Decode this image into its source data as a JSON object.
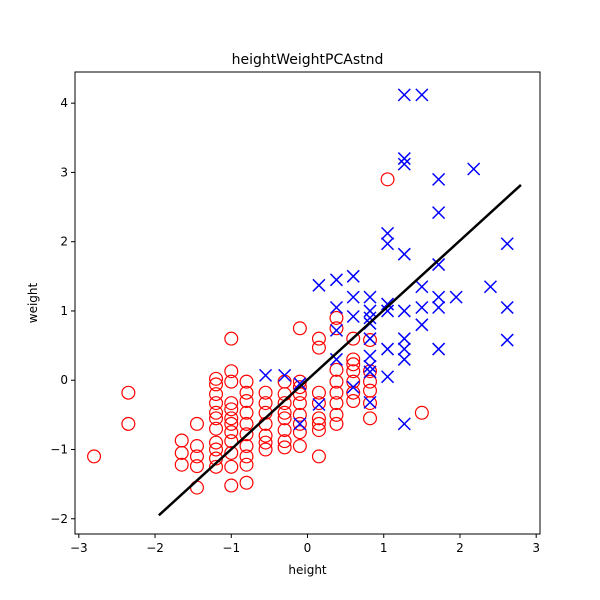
{
  "chart_data": {
    "type": "scatter",
    "title": "heightWeightPCAstnd",
    "xlabel": "height",
    "ylabel": "weight",
    "xlim": [
      -3.05,
      3.05
    ],
    "ylim": [
      -2.22,
      4.45
    ],
    "xticks": [
      -3,
      -2,
      -1,
      0,
      1,
      2,
      3
    ],
    "yticks": [
      -2,
      -1,
      0,
      1,
      2,
      3,
      4
    ],
    "xtick_labels": [
      "−3",
      "−2",
      "−1",
      "0",
      "1",
      "2",
      "3"
    ],
    "ytick_labels": [
      "−2",
      "−1",
      "0",
      "1",
      "2",
      "3",
      "4"
    ],
    "grid": false,
    "colors": {
      "series_o": "#ff0000",
      "series_x": "#0000ff",
      "line": "#000000"
    },
    "series": [
      {
        "marker": "circle",
        "color": "#ff0000",
        "points": [
          [
            -2.8,
            -1.1
          ],
          [
            -2.35,
            -0.18
          ],
          [
            -2.35,
            -0.63
          ],
          [
            -1.65,
            -0.87
          ],
          [
            -1.65,
            -1.05
          ],
          [
            -1.65,
            -1.22
          ],
          [
            -1.45,
            -0.63
          ],
          [
            -1.45,
            -0.95
          ],
          [
            -1.45,
            -1.1
          ],
          [
            -1.45,
            -1.24
          ],
          [
            -1.45,
            -1.55
          ],
          [
            -1.2,
            0.02
          ],
          [
            -1.2,
            -0.06
          ],
          [
            -1.2,
            -0.2
          ],
          [
            -1.2,
            -0.33
          ],
          [
            -1.2,
            -0.47
          ],
          [
            -1.2,
            -0.55
          ],
          [
            -1.2,
            -0.7
          ],
          [
            -1.2,
            -0.9
          ],
          [
            -1.2,
            -1.0
          ],
          [
            -1.2,
            -1.13
          ],
          [
            -1.2,
            -1.25
          ],
          [
            -1.0,
            0.6
          ],
          [
            -1.0,
            0.13
          ],
          [
            -1.0,
            -0.02
          ],
          [
            -1.0,
            -0.33
          ],
          [
            -1.0,
            -0.42
          ],
          [
            -1.0,
            -0.55
          ],
          [
            -1.0,
            -0.63
          ],
          [
            -1.0,
            -0.75
          ],
          [
            -1.0,
            -0.88
          ],
          [
            -1.0,
            -1.05
          ],
          [
            -1.0,
            -1.25
          ],
          [
            -1.0,
            -1.52
          ],
          [
            -0.8,
            -0.02
          ],
          [
            -0.8,
            -0.18
          ],
          [
            -0.8,
            -0.3
          ],
          [
            -0.8,
            -0.47
          ],
          [
            -0.8,
            -0.63
          ],
          [
            -0.8,
            -0.78
          ],
          [
            -0.8,
            -0.95
          ],
          [
            -0.8,
            -1.1
          ],
          [
            -0.8,
            -1.22
          ],
          [
            -0.8,
            -1.48
          ],
          [
            -0.55,
            -0.18
          ],
          [
            -0.55,
            -0.33
          ],
          [
            -0.55,
            -0.47
          ],
          [
            -0.55,
            -0.63
          ],
          [
            -0.55,
            -0.8
          ],
          [
            -0.55,
            -0.9
          ],
          [
            -0.55,
            -1.0
          ],
          [
            -0.3,
            -0.02
          ],
          [
            -0.3,
            -0.2
          ],
          [
            -0.3,
            -0.33
          ],
          [
            -0.3,
            -0.47
          ],
          [
            -0.3,
            -0.55
          ],
          [
            -0.3,
            -0.72
          ],
          [
            -0.3,
            -0.88
          ],
          [
            -0.3,
            -0.97
          ],
          [
            -0.1,
            0.75
          ],
          [
            -0.1,
            -0.02
          ],
          [
            -0.1,
            -0.1
          ],
          [
            -0.1,
            -0.2
          ],
          [
            -0.1,
            -0.33
          ],
          [
            -0.1,
            -0.5
          ],
          [
            -0.1,
            -0.63
          ],
          [
            -0.1,
            -0.75
          ],
          [
            -0.1,
            -0.95
          ],
          [
            0.15,
            0.6
          ],
          [
            0.15,
            0.47
          ],
          [
            0.15,
            -0.18
          ],
          [
            0.15,
            -0.33
          ],
          [
            0.15,
            -0.55
          ],
          [
            0.15,
            -0.63
          ],
          [
            0.15,
            -0.72
          ],
          [
            0.15,
            -1.1
          ],
          [
            0.38,
            0.9
          ],
          [
            0.38,
            0.75
          ],
          [
            0.38,
            0.15
          ],
          [
            0.38,
            -0.02
          ],
          [
            0.38,
            -0.18
          ],
          [
            0.38,
            -0.33
          ],
          [
            0.38,
            -0.5
          ],
          [
            0.38,
            -0.63
          ],
          [
            0.6,
            0.6
          ],
          [
            0.6,
            0.3
          ],
          [
            0.6,
            0.23
          ],
          [
            0.6,
            0.13
          ],
          [
            0.6,
            -0.02
          ],
          [
            0.6,
            -0.18
          ],
          [
            0.6,
            -0.3
          ],
          [
            0.82,
            0.58
          ],
          [
            0.82,
            0.13
          ],
          [
            0.82,
            -0.02
          ],
          [
            0.82,
            -0.15
          ],
          [
            0.82,
            -0.33
          ],
          [
            0.82,
            -0.55
          ],
          [
            1.05,
            2.9
          ],
          [
            1.5,
            -0.47
          ]
        ]
      },
      {
        "marker": "x",
        "color": "#0000ff",
        "points": [
          [
            -0.55,
            0.07
          ],
          [
            -0.3,
            0.07
          ],
          [
            -0.1,
            -0.05
          ],
          [
            -0.1,
            -0.63
          ],
          [
            0.15,
            1.37
          ],
          [
            0.15,
            -0.35
          ],
          [
            0.38,
            1.45
          ],
          [
            0.38,
            1.05
          ],
          [
            0.38,
            0.72
          ],
          [
            0.38,
            0.3
          ],
          [
            0.6,
            1.5
          ],
          [
            0.6,
            1.2
          ],
          [
            0.6,
            0.92
          ],
          [
            0.6,
            -0.1
          ],
          [
            0.82,
            1.2
          ],
          [
            0.82,
            1.0
          ],
          [
            0.82,
            0.9
          ],
          [
            0.82,
            0.82
          ],
          [
            0.82,
            0.6
          ],
          [
            0.82,
            0.35
          ],
          [
            0.82,
            0.2
          ],
          [
            0.82,
            0.12
          ],
          [
            0.82,
            -0.32
          ],
          [
            1.05,
            2.12
          ],
          [
            1.05,
            1.97
          ],
          [
            1.05,
            1.1
          ],
          [
            1.05,
            1.0
          ],
          [
            1.05,
            0.45
          ],
          [
            1.05,
            0.05
          ],
          [
            1.27,
            4.12
          ],
          [
            1.27,
            3.2
          ],
          [
            1.27,
            3.12
          ],
          [
            1.27,
            1.82
          ],
          [
            1.27,
            1.0
          ],
          [
            1.27,
            0.6
          ],
          [
            1.27,
            0.45
          ],
          [
            1.27,
            0.3
          ],
          [
            1.27,
            -0.63
          ],
          [
            1.5,
            4.12
          ],
          [
            1.5,
            1.35
          ],
          [
            1.5,
            1.05
          ],
          [
            1.5,
            0.8
          ],
          [
            1.72,
            2.9
          ],
          [
            1.72,
            2.42
          ],
          [
            1.72,
            1.67
          ],
          [
            1.72,
            1.2
          ],
          [
            1.72,
            1.05
          ],
          [
            1.72,
            0.45
          ],
          [
            1.95,
            1.2
          ],
          [
            2.18,
            3.05
          ],
          [
            2.4,
            1.35
          ],
          [
            2.62,
            1.97
          ],
          [
            2.62,
            1.05
          ],
          [
            2.62,
            0.58
          ]
        ]
      }
    ],
    "line": {
      "x": [
        -1.95,
        2.8
      ],
      "y": [
        -1.95,
        2.82
      ]
    }
  }
}
